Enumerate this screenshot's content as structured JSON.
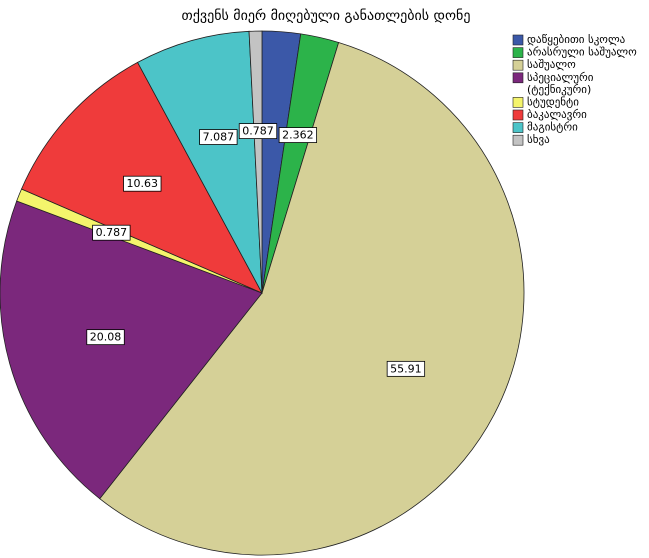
{
  "chart_data": {
    "type": "pie",
    "title": "თქვენს მიერ მიღებული განათლების დონე",
    "categories": [
      "დაწყებითი სკოლა",
      "არასრული საშუალო",
      "საშუალო",
      "სპეციალური (ტექნიკური)",
      "სტუდენტი",
      "ბაკალავრი",
      "მაგისტრი",
      "სხვა"
    ],
    "values": [
      2.362,
      2.362,
      55.91,
      20.08,
      0.787,
      10.63,
      7.087,
      0.787
    ],
    "value_labels": [
      null,
      "2.362",
      "55.91",
      "20.08",
      "0.787",
      "10.63",
      "7.087",
      "0.787"
    ],
    "colors": [
      "#3b58a8",
      "#2cb34a",
      "#d5d097",
      "#7b287c",
      "#f4f46c",
      "#ef3b3b",
      "#4cc4c8",
      "#c3c3c3"
    ],
    "legend": "right"
  }
}
